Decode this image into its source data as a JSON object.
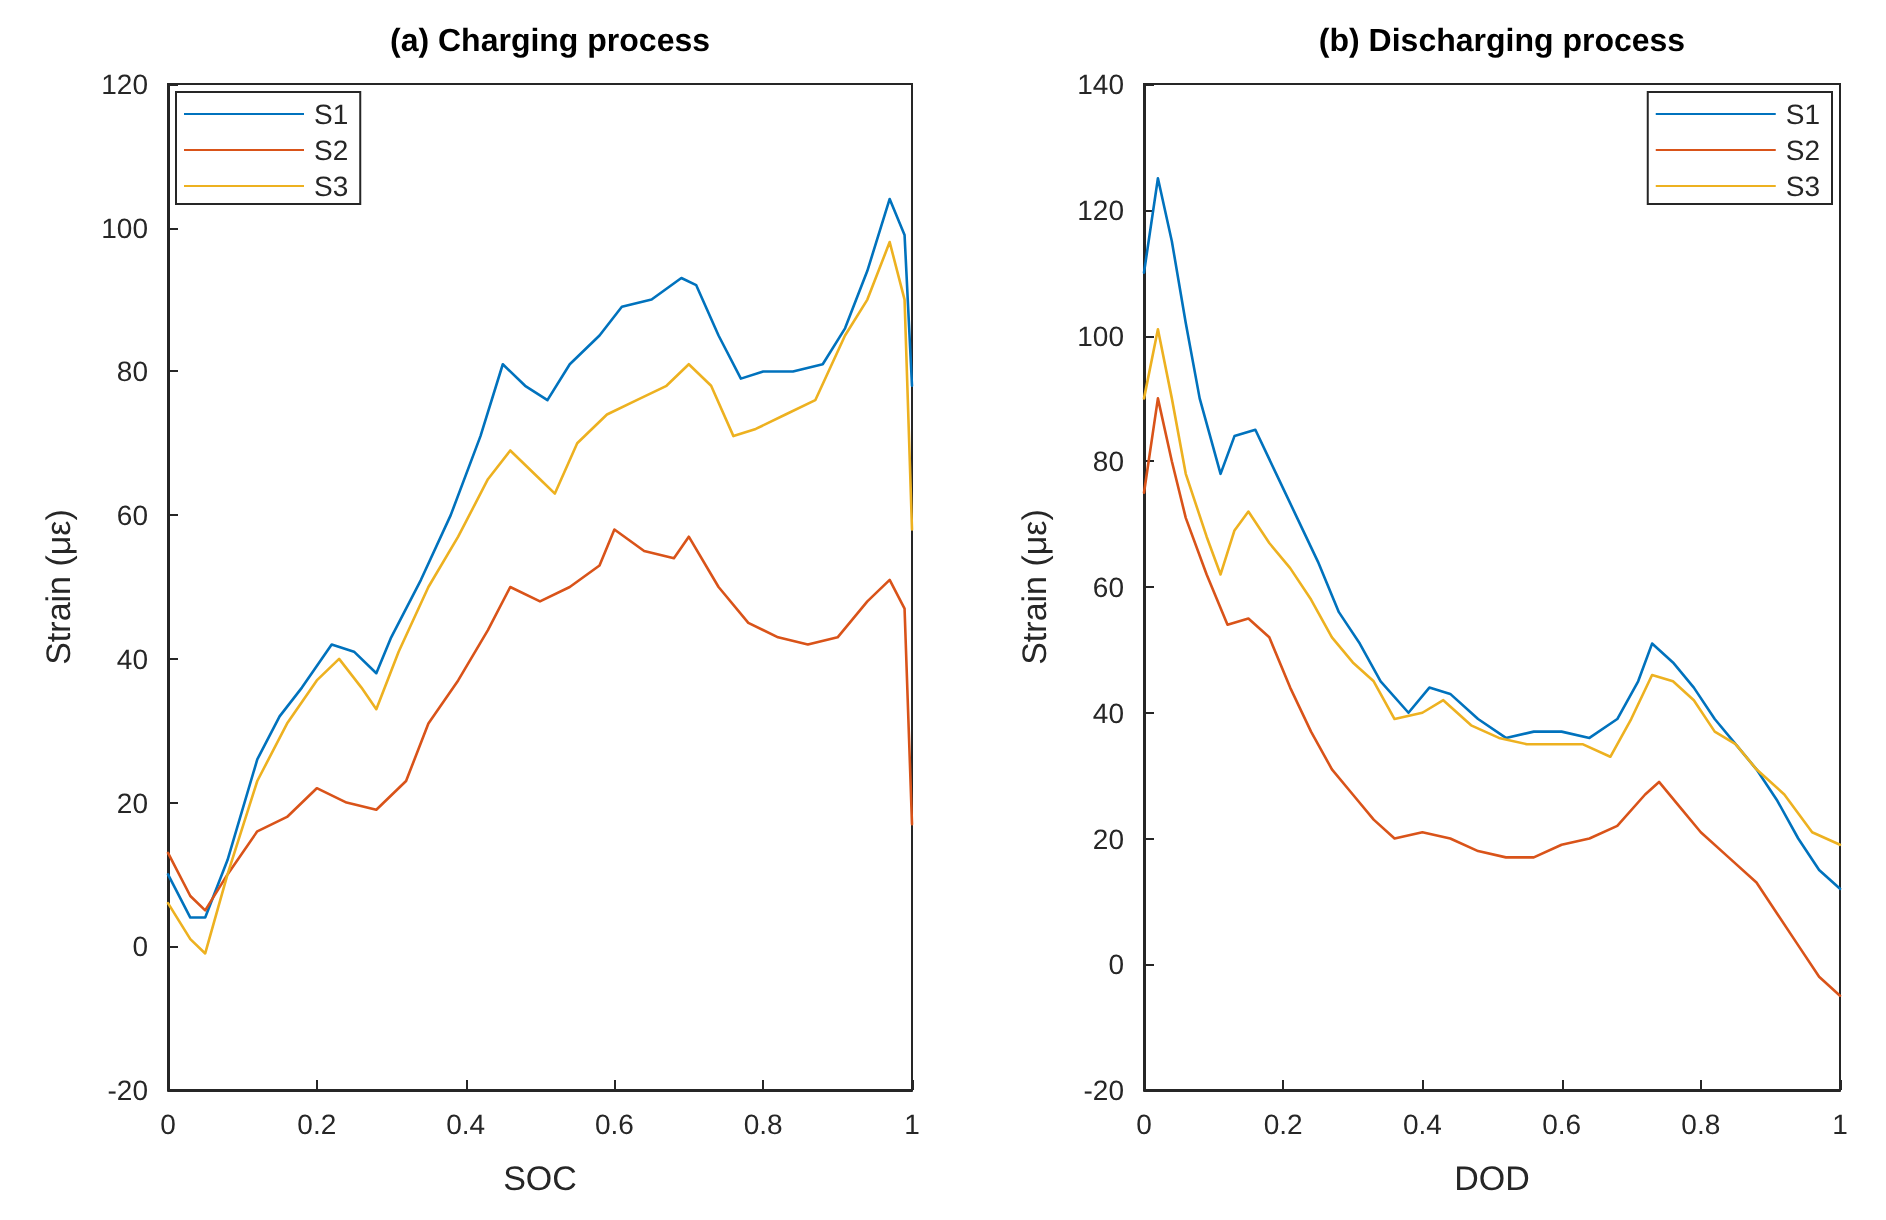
{
  "chart_data": [
    {
      "type": "line",
      "title": "(a) Charging process",
      "xlabel": "SOC",
      "ylabel": "Strain (με)",
      "xlim": [
        0,
        1
      ],
      "xticks": [
        0,
        0.2,
        0.4,
        0.6,
        0.8,
        1
      ],
      "ylim": [
        -20,
        120
      ],
      "yticks": [
        -20,
        0,
        20,
        40,
        60,
        80,
        100,
        120
      ],
      "grid": false,
      "legend": "top left",
      "marker": "none",
      "line_style": "solid",
      "series": [
        {
          "name": "S1",
          "color": "#0072bd",
          "x": [
            0,
            0.03,
            0.05,
            0.08,
            0.12,
            0.15,
            0.18,
            0.22,
            0.25,
            0.28,
            0.3,
            0.34,
            0.38,
            0.42,
            0.45,
            0.48,
            0.51,
            0.54,
            0.58,
            0.61,
            0.65,
            0.69,
            0.71,
            0.74,
            0.77,
            0.8,
            0.84,
            0.88,
            0.91,
            0.94,
            0.97,
            0.99,
            1
          ],
          "values": [
            10,
            4,
            4,
            12,
            26,
            32,
            36,
            42,
            41,
            38,
            43,
            51,
            60,
            71,
            81,
            78,
            76,
            81,
            85,
            89,
            90,
            93,
            92,
            85,
            79,
            80,
            80,
            81,
            86,
            94,
            104,
            99,
            78
          ]
        },
        {
          "name": "S2",
          "color": "#d95319",
          "x": [
            0,
            0.03,
            0.05,
            0.08,
            0.12,
            0.16,
            0.2,
            0.24,
            0.28,
            0.32,
            0.35,
            0.39,
            0.43,
            0.46,
            0.5,
            0.54,
            0.58,
            0.6,
            0.64,
            0.68,
            0.7,
            0.74,
            0.78,
            0.82,
            0.86,
            0.9,
            0.94,
            0.97,
            0.99,
            1
          ],
          "values": [
            13,
            7,
            5,
            10,
            16,
            18,
            22,
            20,
            19,
            23,
            31,
            37,
            44,
            50,
            48,
            50,
            53,
            58,
            55,
            54,
            57,
            50,
            45,
            43,
            42,
            43,
            48,
            51,
            47,
            17
          ]
        },
        {
          "name": "S3",
          "color": "#edb120",
          "x": [
            0,
            0.03,
            0.05,
            0.08,
            0.12,
            0.16,
            0.2,
            0.23,
            0.26,
            0.28,
            0.31,
            0.35,
            0.39,
            0.43,
            0.46,
            0.5,
            0.52,
            0.55,
            0.59,
            0.63,
            0.67,
            0.7,
            0.73,
            0.76,
            0.79,
            0.83,
            0.87,
            0.91,
            0.94,
            0.97,
            0.99,
            1
          ],
          "values": [
            6,
            1,
            -1,
            10,
            23,
            31,
            37,
            40,
            36,
            33,
            41,
            50,
            57,
            65,
            69,
            65,
            63,
            70,
            74,
            76,
            78,
            81,
            78,
            71,
            72,
            74,
            76,
            85,
            90,
            98,
            90,
            58
          ]
        }
      ]
    },
    {
      "type": "line",
      "title": "(b) Discharging process",
      "xlabel": "DOD",
      "ylabel": "Strain (με)",
      "xlim": [
        0,
        1
      ],
      "xticks": [
        0,
        0.2,
        0.4,
        0.6,
        0.8,
        1
      ],
      "ylim": [
        -20,
        140
      ],
      "yticks": [
        -20,
        0,
        20,
        40,
        60,
        80,
        100,
        120,
        140
      ],
      "grid": false,
      "legend": "top right",
      "marker": "none",
      "line_style": "solid",
      "series": [
        {
          "name": "S1",
          "color": "#0072bd",
          "x": [
            0,
            0.02,
            0.04,
            0.06,
            0.08,
            0.11,
            0.13,
            0.16,
            0.19,
            0.22,
            0.25,
            0.28,
            0.31,
            0.34,
            0.38,
            0.41,
            0.44,
            0.48,
            0.52,
            0.56,
            0.6,
            0.64,
            0.68,
            0.71,
            0.73,
            0.76,
            0.79,
            0.82,
            0.85,
            0.88,
            0.91,
            0.94,
            0.97,
            1
          ],
          "values": [
            110,
            125,
            115,
            102,
            90,
            78,
            84,
            85,
            78,
            71,
            64,
            56,
            51,
            45,
            40,
            44,
            43,
            39,
            36,
            37,
            37,
            36,
            39,
            45,
            51,
            48,
            44,
            39,
            35,
            31,
            26,
            20,
            15,
            12
          ]
        },
        {
          "name": "S2",
          "color": "#d95319",
          "x": [
            0,
            0.02,
            0.04,
            0.06,
            0.09,
            0.12,
            0.15,
            0.18,
            0.21,
            0.24,
            0.27,
            0.3,
            0.33,
            0.36,
            0.4,
            0.44,
            0.48,
            0.52,
            0.56,
            0.6,
            0.64,
            0.68,
            0.72,
            0.74,
            0.77,
            0.8,
            0.84,
            0.88,
            0.91,
            0.94,
            0.97,
            1
          ],
          "values": [
            75,
            90,
            80,
            71,
            62,
            54,
            55,
            52,
            44,
            37,
            31,
            27,
            23,
            20,
            21,
            20,
            18,
            17,
            17,
            19,
            20,
            22,
            27,
            29,
            25,
            21,
            17,
            13,
            8,
            3,
            -2,
            -5
          ]
        },
        {
          "name": "S3",
          "color": "#edb120",
          "x": [
            0,
            0.02,
            0.04,
            0.06,
            0.09,
            0.11,
            0.13,
            0.15,
            0.18,
            0.21,
            0.24,
            0.27,
            0.3,
            0.33,
            0.36,
            0.4,
            0.43,
            0.47,
            0.51,
            0.55,
            0.59,
            0.63,
            0.67,
            0.7,
            0.73,
            0.76,
            0.79,
            0.82,
            0.85,
            0.88,
            0.92,
            0.96,
            1
          ],
          "values": [
            90,
            101,
            90,
            78,
            68,
            62,
            69,
            72,
            67,
            63,
            58,
            52,
            48,
            45,
            39,
            40,
            42,
            38,
            36,
            35,
            35,
            35,
            33,
            39,
            46,
            45,
            42,
            37,
            35,
            31,
            27,
            21,
            19
          ]
        }
      ]
    }
  ]
}
